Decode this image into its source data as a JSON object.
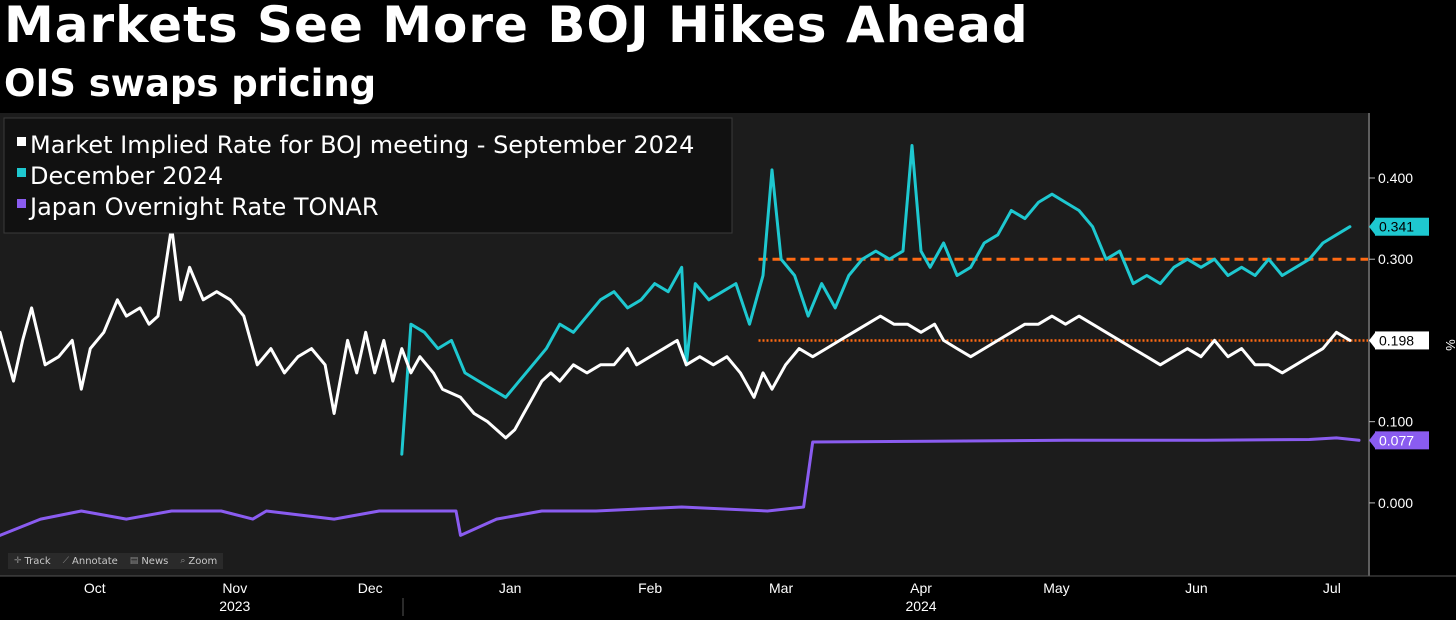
{
  "header": {
    "title": "Markets See More BOJ Hikes Ahead",
    "subtitle": "OIS swaps pricing"
  },
  "toolbar": [
    {
      "label": "Track",
      "icon": "crosshair-icon"
    },
    {
      "label": "Annotate",
      "icon": "pencil-icon"
    },
    {
      "label": "News",
      "icon": "news-icon"
    },
    {
      "label": "Zoom",
      "icon": "magnifier-icon"
    }
  ],
  "chart_data": {
    "type": "line",
    "ylabel": "%",
    "ylim": [
      -0.09,
      0.48
    ],
    "y_ticks": [
      0.0,
      0.1,
      0.3,
      0.4
    ],
    "y_tick_labels": [
      "0.000",
      "0.100",
      "0.300",
      "0.400"
    ],
    "x_range": [
      "2023-09-22",
      "2024-07-21"
    ],
    "x_month_labels": [
      {
        "label": "Oct",
        "date": "2023-10-13"
      },
      {
        "label": "Nov",
        "date": "2023-11-13"
      },
      {
        "label": "Dec",
        "date": "2023-12-13"
      },
      {
        "label": "Jan",
        "date": "2024-01-13"
      },
      {
        "label": "Feb",
        "date": "2024-02-13"
      },
      {
        "label": "Mar",
        "date": "2024-03-13"
      },
      {
        "label": "Apr",
        "date": "2024-04-13"
      },
      {
        "label": "May",
        "date": "2024-05-13"
      },
      {
        "label": "Jun",
        "date": "2024-06-13"
      },
      {
        "label": "Jul",
        "date": "2024-07-13"
      }
    ],
    "x_year_labels": [
      {
        "label": "2023",
        "date": "2023-11-13"
      },
      {
        "label": "2024",
        "date": "2024-04-13"
      }
    ],
    "legend": "top-left",
    "grid": false,
    "reference_lines": [
      {
        "y": 0.3,
        "color": "#ff6a13",
        "style": "dashed",
        "from": "2024-03-08"
      },
      {
        "y": 0.2,
        "color": "#ff6a13",
        "style": "dotted",
        "from": "2024-03-08"
      }
    ],
    "series": [
      {
        "name": "Market Implied Rate for BOJ meeting - September 2024",
        "color": "#ffffff",
        "last_value": "0.198",
        "points": [
          [
            "2023-09-22",
            0.21
          ],
          [
            "2023-09-25",
            0.15
          ],
          [
            "2023-09-27",
            0.2
          ],
          [
            "2023-09-29",
            0.24
          ],
          [
            "2023-10-02",
            0.17
          ],
          [
            "2023-10-05",
            0.18
          ],
          [
            "2023-10-08",
            0.2
          ],
          [
            "2023-10-10",
            0.14
          ],
          [
            "2023-10-12",
            0.19
          ],
          [
            "2023-10-15",
            0.21
          ],
          [
            "2023-10-18",
            0.25
          ],
          [
            "2023-10-20",
            0.23
          ],
          [
            "2023-10-23",
            0.24
          ],
          [
            "2023-10-25",
            0.22
          ],
          [
            "2023-10-27",
            0.23
          ],
          [
            "2023-10-30",
            0.34
          ],
          [
            "2023-11-01",
            0.25
          ],
          [
            "2023-11-03",
            0.29
          ],
          [
            "2023-11-06",
            0.25
          ],
          [
            "2023-11-09",
            0.26
          ],
          [
            "2023-11-12",
            0.25
          ],
          [
            "2023-11-15",
            0.23
          ],
          [
            "2023-11-18",
            0.17
          ],
          [
            "2023-11-21",
            0.19
          ],
          [
            "2023-11-24",
            0.16
          ],
          [
            "2023-11-27",
            0.18
          ],
          [
            "2023-11-30",
            0.19
          ],
          [
            "2023-12-03",
            0.17
          ],
          [
            "2023-12-05",
            0.11
          ],
          [
            "2023-12-08",
            0.2
          ],
          [
            "2023-12-10",
            0.16
          ],
          [
            "2023-12-12",
            0.21
          ],
          [
            "2023-12-14",
            0.16
          ],
          [
            "2023-12-16",
            0.2
          ],
          [
            "2023-12-18",
            0.15
          ],
          [
            "2023-12-20",
            0.19
          ],
          [
            "2023-12-22",
            0.16
          ],
          [
            "2023-12-24",
            0.18
          ],
          [
            "2023-12-27",
            0.16
          ],
          [
            "2023-12-29",
            0.14
          ],
          [
            "2024-01-02",
            0.13
          ],
          [
            "2024-01-05",
            0.11
          ],
          [
            "2024-01-08",
            0.1
          ],
          [
            "2024-01-10",
            0.09
          ],
          [
            "2024-01-12",
            0.08
          ],
          [
            "2024-01-14",
            0.09
          ],
          [
            "2024-01-16",
            0.11
          ],
          [
            "2024-01-18",
            0.13
          ],
          [
            "2024-01-20",
            0.15
          ],
          [
            "2024-01-22",
            0.16
          ],
          [
            "2024-01-24",
            0.15
          ],
          [
            "2024-01-27",
            0.17
          ],
          [
            "2024-01-30",
            0.16
          ],
          [
            "2024-02-02",
            0.17
          ],
          [
            "2024-02-05",
            0.17
          ],
          [
            "2024-02-08",
            0.19
          ],
          [
            "2024-02-10",
            0.17
          ],
          [
            "2024-02-13",
            0.18
          ],
          [
            "2024-02-16",
            0.19
          ],
          [
            "2024-02-19",
            0.2
          ],
          [
            "2024-02-21",
            0.17
          ],
          [
            "2024-02-24",
            0.18
          ],
          [
            "2024-02-27",
            0.17
          ],
          [
            "2024-03-01",
            0.18
          ],
          [
            "2024-03-04",
            0.16
          ],
          [
            "2024-03-07",
            0.13
          ],
          [
            "2024-03-09",
            0.16
          ],
          [
            "2024-03-11",
            0.14
          ],
          [
            "2024-03-14",
            0.17
          ],
          [
            "2024-03-17",
            0.19
          ],
          [
            "2024-03-20",
            0.18
          ],
          [
            "2024-03-23",
            0.19
          ],
          [
            "2024-03-26",
            0.2
          ],
          [
            "2024-03-29",
            0.21
          ],
          [
            "2024-04-01",
            0.22
          ],
          [
            "2024-04-04",
            0.23
          ],
          [
            "2024-04-07",
            0.22
          ],
          [
            "2024-04-10",
            0.22
          ],
          [
            "2024-04-13",
            0.21
          ],
          [
            "2024-04-16",
            0.22
          ],
          [
            "2024-04-18",
            0.2
          ],
          [
            "2024-04-21",
            0.19
          ],
          [
            "2024-04-24",
            0.18
          ],
          [
            "2024-04-27",
            0.19
          ],
          [
            "2024-04-30",
            0.2
          ],
          [
            "2024-05-03",
            0.21
          ],
          [
            "2024-05-06",
            0.22
          ],
          [
            "2024-05-09",
            0.22
          ],
          [
            "2024-05-12",
            0.23
          ],
          [
            "2024-05-15",
            0.22
          ],
          [
            "2024-05-18",
            0.23
          ],
          [
            "2024-05-21",
            0.22
          ],
          [
            "2024-05-24",
            0.21
          ],
          [
            "2024-05-27",
            0.2
          ],
          [
            "2024-05-30",
            0.19
          ],
          [
            "2024-06-02",
            0.18
          ],
          [
            "2024-06-05",
            0.17
          ],
          [
            "2024-06-08",
            0.18
          ],
          [
            "2024-06-11",
            0.19
          ],
          [
            "2024-06-14",
            0.18
          ],
          [
            "2024-06-17",
            0.2
          ],
          [
            "2024-06-20",
            0.18
          ],
          [
            "2024-06-23",
            0.19
          ],
          [
            "2024-06-26",
            0.17
          ],
          [
            "2024-06-29",
            0.17
          ],
          [
            "2024-07-02",
            0.16
          ],
          [
            "2024-07-05",
            0.17
          ],
          [
            "2024-07-08",
            0.18
          ],
          [
            "2024-07-11",
            0.19
          ],
          [
            "2024-07-14",
            0.21
          ],
          [
            "2024-07-17",
            0.2
          ]
        ]
      },
      {
        "name": "December 2024",
        "color": "#1ec8d0",
        "last_value": "0.341",
        "points": [
          [
            "2023-12-20",
            0.06
          ],
          [
            "2023-12-22",
            0.22
          ],
          [
            "2023-12-25",
            0.21
          ],
          [
            "2023-12-28",
            0.19
          ],
          [
            "2023-12-31",
            0.2
          ],
          [
            "2024-01-03",
            0.16
          ],
          [
            "2024-01-06",
            0.15
          ],
          [
            "2024-01-09",
            0.14
          ],
          [
            "2024-01-12",
            0.13
          ],
          [
            "2024-01-15",
            0.15
          ],
          [
            "2024-01-18",
            0.17
          ],
          [
            "2024-01-21",
            0.19
          ],
          [
            "2024-01-24",
            0.22
          ],
          [
            "2024-01-27",
            0.21
          ],
          [
            "2024-01-30",
            0.23
          ],
          [
            "2024-02-02",
            0.25
          ],
          [
            "2024-02-05",
            0.26
          ],
          [
            "2024-02-08",
            0.24
          ],
          [
            "2024-02-11",
            0.25
          ],
          [
            "2024-02-14",
            0.27
          ],
          [
            "2024-02-17",
            0.26
          ],
          [
            "2024-02-20",
            0.29
          ],
          [
            "2024-02-21",
            0.17
          ],
          [
            "2024-02-23",
            0.27
          ],
          [
            "2024-02-26",
            0.25
          ],
          [
            "2024-02-29",
            0.26
          ],
          [
            "2024-03-03",
            0.27
          ],
          [
            "2024-03-06",
            0.22
          ],
          [
            "2024-03-09",
            0.28
          ],
          [
            "2024-03-11",
            0.41
          ],
          [
            "2024-03-13",
            0.3
          ],
          [
            "2024-03-16",
            0.28
          ],
          [
            "2024-03-19",
            0.23
          ],
          [
            "2024-03-22",
            0.27
          ],
          [
            "2024-03-25",
            0.24
          ],
          [
            "2024-03-28",
            0.28
          ],
          [
            "2024-03-31",
            0.3
          ],
          [
            "2024-04-03",
            0.31
          ],
          [
            "2024-04-06",
            0.3
          ],
          [
            "2024-04-09",
            0.31
          ],
          [
            "2024-04-11",
            0.44
          ],
          [
            "2024-04-13",
            0.31
          ],
          [
            "2024-04-15",
            0.29
          ],
          [
            "2024-04-18",
            0.32
          ],
          [
            "2024-04-21",
            0.28
          ],
          [
            "2024-04-24",
            0.29
          ],
          [
            "2024-04-27",
            0.32
          ],
          [
            "2024-04-30",
            0.33
          ],
          [
            "2024-05-03",
            0.36
          ],
          [
            "2024-05-06",
            0.35
          ],
          [
            "2024-05-09",
            0.37
          ],
          [
            "2024-05-12",
            0.38
          ],
          [
            "2024-05-15",
            0.37
          ],
          [
            "2024-05-18",
            0.36
          ],
          [
            "2024-05-21",
            0.34
          ],
          [
            "2024-05-24",
            0.3
          ],
          [
            "2024-05-27",
            0.31
          ],
          [
            "2024-05-30",
            0.27
          ],
          [
            "2024-06-02",
            0.28
          ],
          [
            "2024-06-05",
            0.27
          ],
          [
            "2024-06-08",
            0.29
          ],
          [
            "2024-06-11",
            0.3
          ],
          [
            "2024-06-14",
            0.29
          ],
          [
            "2024-06-17",
            0.3
          ],
          [
            "2024-06-20",
            0.28
          ],
          [
            "2024-06-23",
            0.29
          ],
          [
            "2024-06-26",
            0.28
          ],
          [
            "2024-06-29",
            0.3
          ],
          [
            "2024-07-02",
            0.28
          ],
          [
            "2024-07-05",
            0.29
          ],
          [
            "2024-07-08",
            0.3
          ],
          [
            "2024-07-11",
            0.32
          ],
          [
            "2024-07-14",
            0.33
          ],
          [
            "2024-07-17",
            0.34
          ]
        ]
      },
      {
        "name": "Japan Overnight Rate TONAR",
        "color": "#8a5cf0",
        "last_value": "0.077",
        "points": [
          [
            "2023-09-22",
            -0.04
          ],
          [
            "2023-10-01",
            -0.02
          ],
          [
            "2023-10-10",
            -0.01
          ],
          [
            "2023-10-20",
            -0.02
          ],
          [
            "2023-10-30",
            -0.01
          ],
          [
            "2023-11-10",
            -0.01
          ],
          [
            "2023-11-17",
            -0.02
          ],
          [
            "2023-11-20",
            -0.01
          ],
          [
            "2023-12-05",
            -0.02
          ],
          [
            "2023-12-15",
            -0.01
          ],
          [
            "2024-01-01",
            -0.01
          ],
          [
            "2024-01-02",
            -0.04
          ],
          [
            "2024-01-10",
            -0.02
          ],
          [
            "2024-01-20",
            -0.01
          ],
          [
            "2024-02-01",
            -0.01
          ],
          [
            "2024-02-20",
            -0.005
          ],
          [
            "2024-03-10",
            -0.01
          ],
          [
            "2024-03-18",
            -0.005
          ],
          [
            "2024-03-20",
            0.075
          ],
          [
            "2024-04-15",
            0.076
          ],
          [
            "2024-05-15",
            0.077
          ],
          [
            "2024-06-15",
            0.077
          ],
          [
            "2024-07-08",
            0.078
          ],
          [
            "2024-07-14",
            0.08
          ],
          [
            "2024-07-19",
            0.077
          ]
        ]
      }
    ]
  }
}
